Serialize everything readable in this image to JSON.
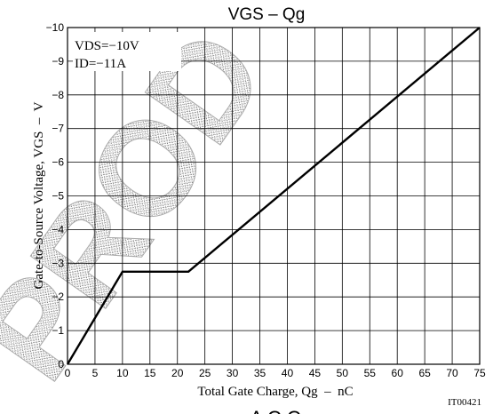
{
  "chart_data": {
    "type": "line",
    "title": "VGS – Qg",
    "xlabel": "Total Gate Charge, Qg  –  nC",
    "ylabel": "Gate-to-Source Voltage, VGS  –  V",
    "xlim": [
      0,
      75
    ],
    "ylim": [
      0,
      -10
    ],
    "x_ticks": [
      0,
      5,
      10,
      15,
      20,
      25,
      30,
      35,
      40,
      45,
      50,
      55,
      60,
      65,
      70,
      75
    ],
    "y_ticks": [
      0,
      -1,
      -2,
      -3,
      -4,
      -5,
      -6,
      -7,
      -8,
      -9,
      -10
    ],
    "grid": true,
    "conditions": [
      "VDS=−10V",
      "ID=−11A"
    ],
    "series": [
      {
        "x": [
          0,
          10,
          22,
          75
        ],
        "y": [
          0,
          -2.75,
          -2.75,
          -10
        ]
      }
    ],
    "code": "IT00421",
    "watermark": "PROD",
    "footer_fragment": "A C C"
  }
}
